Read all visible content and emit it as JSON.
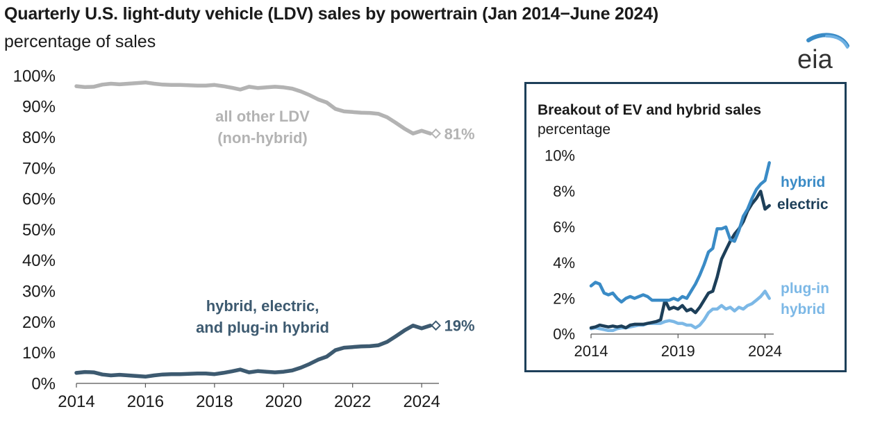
{
  "title": "Quarterly U.S. light-duty vehicle (LDV) sales by powertrain (Jan 2014−June 2024)",
  "subtitle": "percentage of sales",
  "logo_text": "eia",
  "colors": {
    "other": "#b3b3b3",
    "hev_total": "#3d5a70",
    "hybrid": "#3a8bc6",
    "electric": "#1d3f59",
    "phev": "#7cb8e6",
    "inset_border": "#1d3f59"
  },
  "chart_data": [
    {
      "type": "line",
      "title": "Quarterly U.S. light-duty vehicle (LDV) sales by powertrain (Jan 2014−June 2024)",
      "ylabel": "percentage of sales",
      "xlim": [
        2014,
        2024.5
      ],
      "ylim": [
        0,
        100
      ],
      "y_ticks": [
        "0%",
        "10%",
        "20%",
        "30%",
        "40%",
        "50%",
        "60%",
        "70%",
        "80%",
        "90%",
        "100%"
      ],
      "x_ticks": [
        "2014",
        "2016",
        "2018",
        "2020",
        "2022",
        "2024"
      ],
      "grid": false,
      "series": [
        {
          "name": "all other LDV (non-hybrid)",
          "label_lines": [
            "all other LDV",
            "(non-hybrid)"
          ],
          "end_label": "81%",
          "color_key": "other",
          "x": [
            2014.0,
            2014.25,
            2014.5,
            2014.75,
            2015.0,
            2015.25,
            2015.5,
            2015.75,
            2016.0,
            2016.25,
            2016.5,
            2016.75,
            2017.0,
            2017.25,
            2017.5,
            2017.75,
            2018.0,
            2018.25,
            2018.5,
            2018.75,
            2019.0,
            2019.25,
            2019.5,
            2019.75,
            2020.0,
            2020.25,
            2020.5,
            2020.75,
            2021.0,
            2021.25,
            2021.5,
            2021.75,
            2022.0,
            2022.25,
            2022.5,
            2022.75,
            2023.0,
            2023.25,
            2023.5,
            2023.75,
            2024.0,
            2024.25
          ],
          "values": [
            96.6,
            96.3,
            96.4,
            97.1,
            97.4,
            97.2,
            97.4,
            97.6,
            97.8,
            97.4,
            97.1,
            97.0,
            97.0,
            96.9,
            96.8,
            96.8,
            97.0,
            96.6,
            96.1,
            95.5,
            96.4,
            96.0,
            96.2,
            96.4,
            96.2,
            95.8,
            94.9,
            93.7,
            92.3,
            91.3,
            89.2,
            88.4,
            88.2,
            88.0,
            87.9,
            87.6,
            86.5,
            84.7,
            82.8,
            81.2,
            82.1,
            81.2
          ]
        },
        {
          "name": "hybrid, electric, and plug-in hybrid",
          "label_lines": [
            "hybrid, electric,",
            "and plug-in hybrid"
          ],
          "end_label": "19%",
          "color_key": "hev_total",
          "x": [
            2014.0,
            2014.25,
            2014.5,
            2014.75,
            2015.0,
            2015.25,
            2015.5,
            2015.75,
            2016.0,
            2016.25,
            2016.5,
            2016.75,
            2017.0,
            2017.25,
            2017.5,
            2017.75,
            2018.0,
            2018.25,
            2018.5,
            2018.75,
            2019.0,
            2019.25,
            2019.5,
            2019.75,
            2020.0,
            2020.25,
            2020.5,
            2020.75,
            2021.0,
            2021.25,
            2021.5,
            2021.75,
            2022.0,
            2022.25,
            2022.5,
            2022.75,
            2023.0,
            2023.25,
            2023.5,
            2023.75,
            2024.0,
            2024.25
          ],
          "values": [
            3.4,
            3.7,
            3.6,
            2.9,
            2.6,
            2.8,
            2.6,
            2.4,
            2.2,
            2.6,
            2.9,
            3.0,
            3.0,
            3.1,
            3.2,
            3.2,
            3.0,
            3.4,
            3.9,
            4.5,
            3.6,
            4.0,
            3.8,
            3.6,
            3.8,
            4.2,
            5.1,
            6.3,
            7.7,
            8.7,
            10.8,
            11.6,
            11.8,
            12.0,
            12.1,
            12.4,
            13.5,
            15.3,
            17.2,
            18.8,
            17.9,
            18.8
          ]
        }
      ]
    },
    {
      "type": "line",
      "title": "Breakout of EV and hybrid sales",
      "ylabel": "percentage",
      "xlim": [
        2014,
        2024.5
      ],
      "ylim": [
        0,
        10
      ],
      "y_ticks": [
        "0%",
        "2%",
        "4%",
        "6%",
        "8%",
        "10%"
      ],
      "x_ticks": [
        "2014",
        "2019",
        "2024"
      ],
      "grid": false,
      "series": [
        {
          "name": "plug-in hybrid",
          "label_lines": [
            "plug-in",
            "hybrid"
          ],
          "color_key": "phev",
          "x": [
            2014.0,
            2014.25,
            2014.5,
            2014.75,
            2015.0,
            2015.25,
            2015.5,
            2015.75,
            2016.0,
            2016.25,
            2016.5,
            2016.75,
            2017.0,
            2017.25,
            2017.5,
            2017.75,
            2018.0,
            2018.25,
            2018.5,
            2018.75,
            2019.0,
            2019.25,
            2019.5,
            2019.75,
            2020.0,
            2020.25,
            2020.5,
            2020.75,
            2021.0,
            2021.25,
            2021.5,
            2021.75,
            2022.0,
            2022.25,
            2022.5,
            2022.75,
            2023.0,
            2023.25,
            2023.5,
            2023.75,
            2024.0,
            2024.25
          ],
          "values": [
            0.3,
            0.35,
            0.3,
            0.25,
            0.2,
            0.2,
            0.3,
            0.35,
            0.35,
            0.4,
            0.45,
            0.5,
            0.5,
            0.6,
            0.6,
            0.6,
            0.6,
            0.7,
            0.75,
            0.7,
            0.6,
            0.6,
            0.5,
            0.5,
            0.35,
            0.5,
            0.8,
            1.2,
            1.4,
            1.4,
            1.6,
            1.4,
            1.5,
            1.3,
            1.5,
            1.4,
            1.6,
            1.7,
            1.9,
            2.1,
            2.4,
            2.0
          ]
        },
        {
          "name": "electric",
          "label_lines": [
            "electric"
          ],
          "color_key": "electric",
          "x": [
            2014.0,
            2014.25,
            2014.5,
            2014.75,
            2015.0,
            2015.25,
            2015.5,
            2015.75,
            2016.0,
            2016.25,
            2016.5,
            2016.75,
            2017.0,
            2017.25,
            2017.5,
            2017.75,
            2018.0,
            2018.25,
            2018.5,
            2018.75,
            2019.0,
            2019.25,
            2019.5,
            2019.75,
            2020.0,
            2020.25,
            2020.5,
            2020.75,
            2021.0,
            2021.25,
            2021.5,
            2021.75,
            2022.0,
            2022.25,
            2022.5,
            2022.75,
            2023.0,
            2023.25,
            2023.5,
            2023.75,
            2024.0,
            2024.25
          ],
          "values": [
            0.35,
            0.4,
            0.5,
            0.45,
            0.4,
            0.45,
            0.4,
            0.45,
            0.35,
            0.5,
            0.55,
            0.55,
            0.55,
            0.6,
            0.65,
            0.7,
            0.8,
            1.9,
            1.4,
            1.5,
            1.4,
            1.6,
            1.3,
            1.4,
            1.2,
            1.5,
            1.9,
            2.3,
            2.4,
            3.2,
            4.2,
            4.7,
            5.2,
            5.6,
            5.9,
            6.3,
            6.9,
            7.3,
            7.6,
            8.0,
            7.0,
            7.2
          ]
        },
        {
          "name": "hybrid",
          "label_lines": [
            "hybrid"
          ],
          "color_key": "hybrid",
          "x": [
            2014.0,
            2014.25,
            2014.5,
            2014.75,
            2015.0,
            2015.25,
            2015.5,
            2015.75,
            2016.0,
            2016.25,
            2016.5,
            2016.75,
            2017.0,
            2017.25,
            2017.5,
            2017.75,
            2018.0,
            2018.25,
            2018.5,
            2018.75,
            2019.0,
            2019.25,
            2019.5,
            2019.75,
            2020.0,
            2020.25,
            2020.5,
            2020.75,
            2021.0,
            2021.25,
            2021.5,
            2021.75,
            2022.0,
            2022.25,
            2022.5,
            2022.75,
            2023.0,
            2023.25,
            2023.5,
            2023.75,
            2024.0,
            2024.25
          ],
          "values": [
            2.7,
            2.9,
            2.8,
            2.3,
            2.2,
            2.3,
            2.0,
            1.8,
            2.0,
            2.1,
            2.0,
            2.1,
            2.2,
            2.1,
            1.9,
            1.9,
            1.9,
            1.9,
            1.9,
            2.0,
            1.9,
            2.1,
            2.0,
            2.4,
            2.8,
            3.3,
            3.9,
            4.6,
            4.8,
            5.9,
            5.9,
            6.0,
            5.3,
            5.2,
            5.8,
            6.6,
            7.0,
            7.6,
            8.1,
            8.4,
            8.6,
            9.6
          ]
        }
      ]
    }
  ]
}
